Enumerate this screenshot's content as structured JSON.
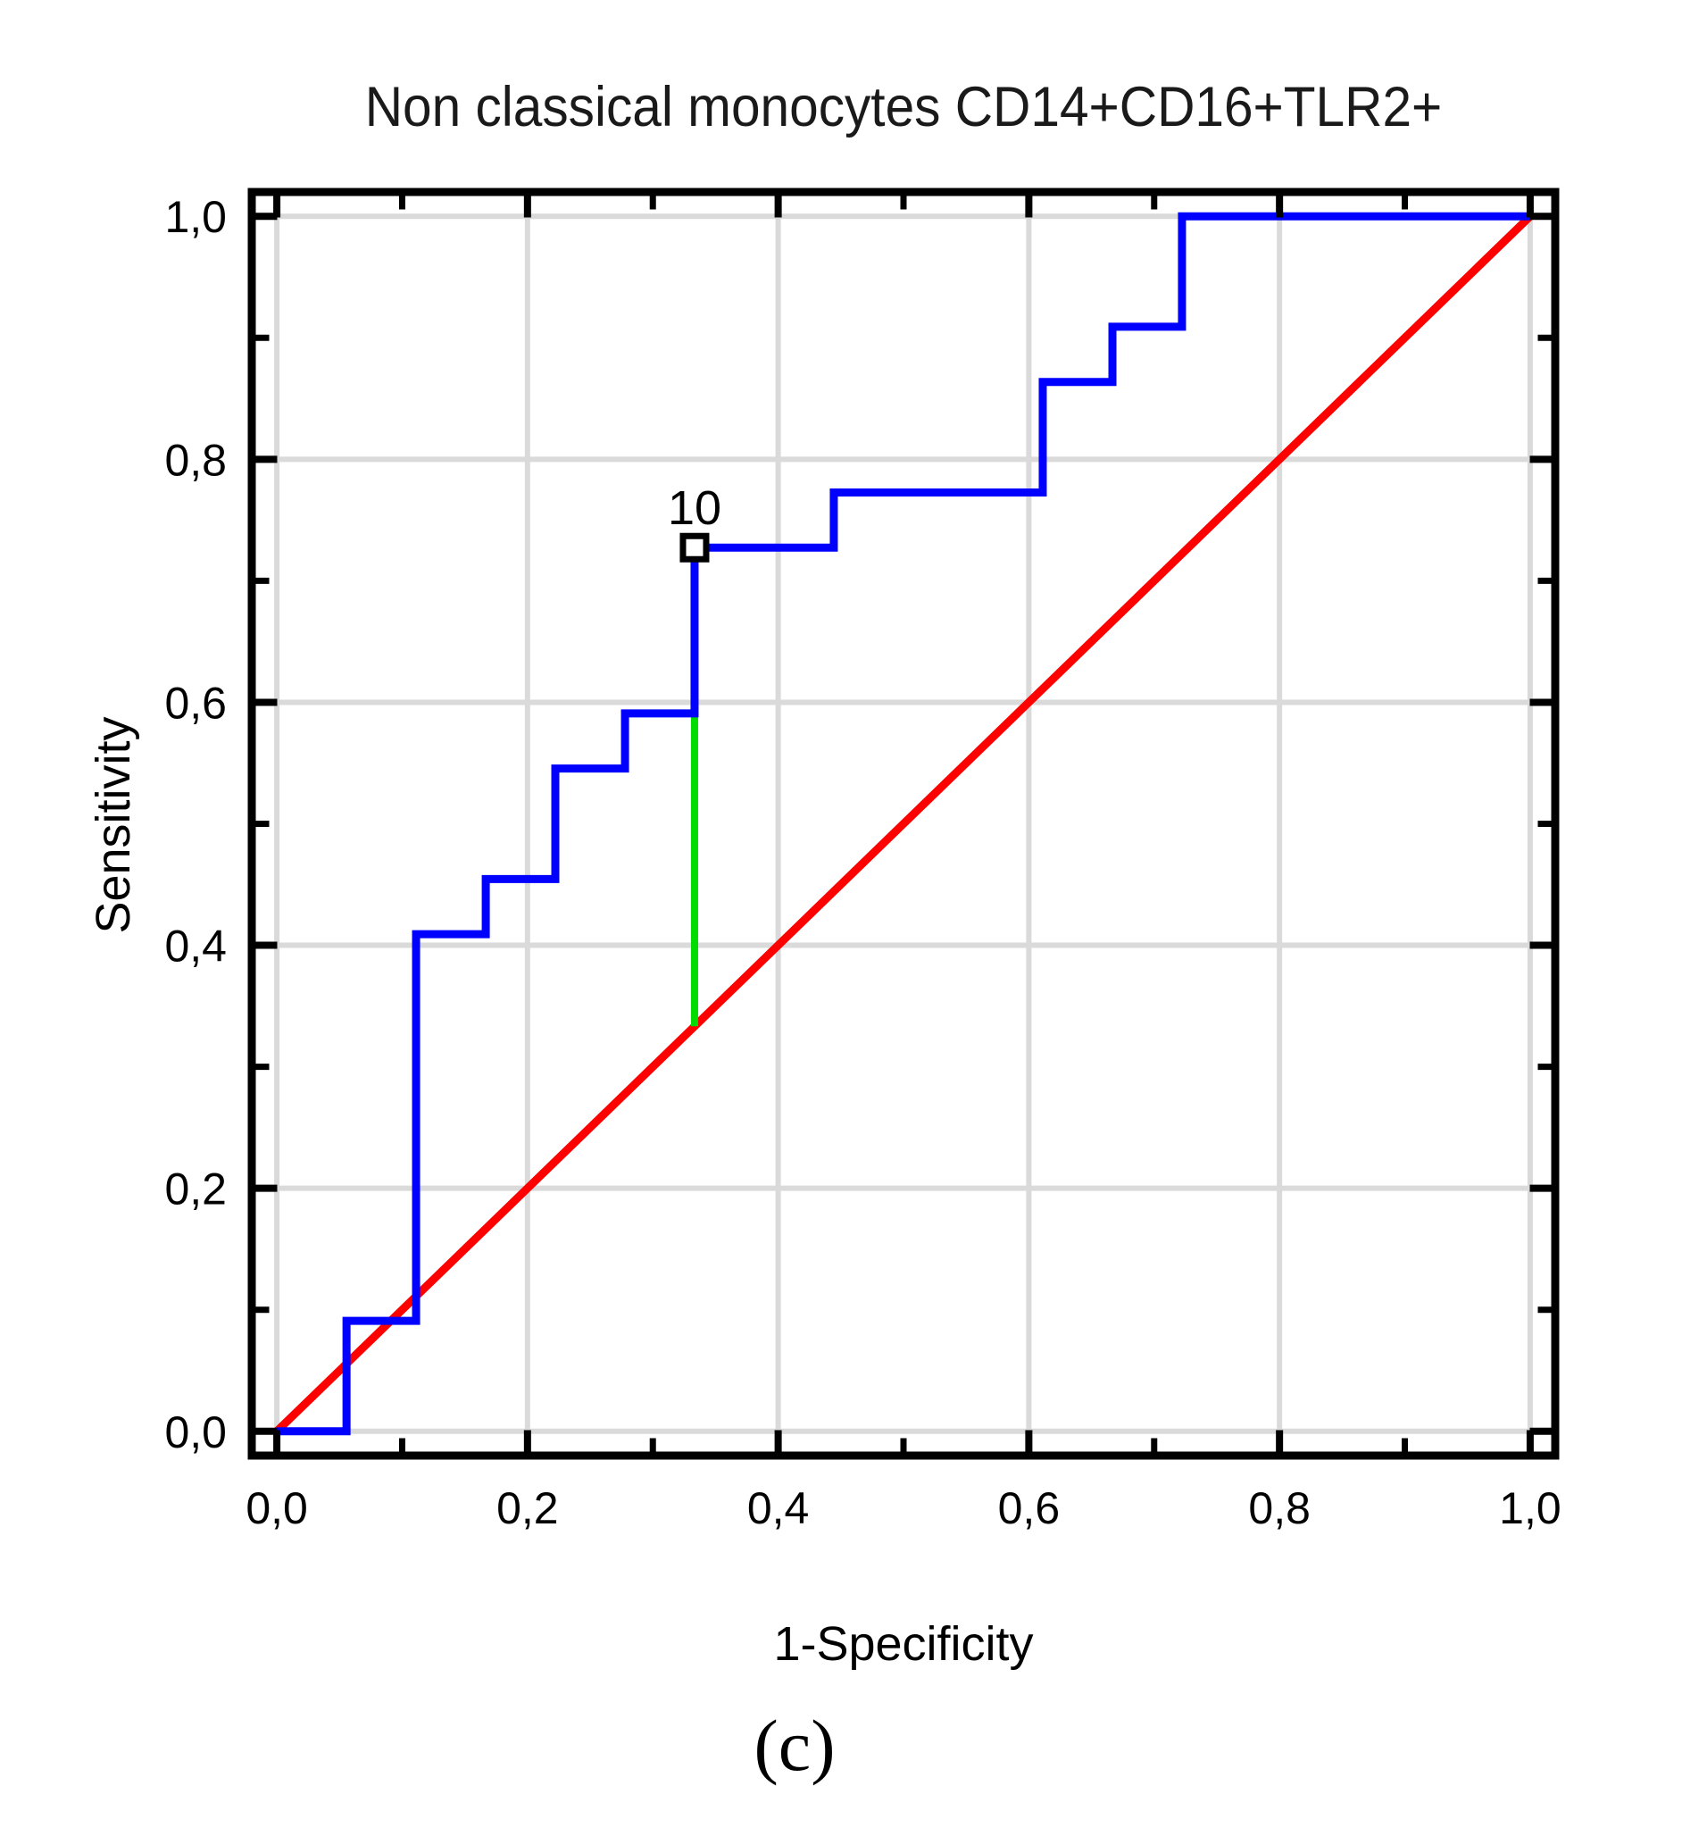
{
  "title": "Non classical monocytes CD14+CD16+TLR2+",
  "caption": "(c)",
  "chart_data": {
    "type": "line",
    "subtype": "roc-step-curve",
    "title": "Non classical monocytes CD14+CD16+TLR2+",
    "xlabel": "1-Specificity",
    "ylabel": "Sensitivity",
    "xlim": [
      -0.02,
      1.02
    ],
    "ylim": [
      -0.02,
      1.02
    ],
    "grid": true,
    "legend": "none",
    "major_tick_values": [
      0.0,
      0.2,
      0.4,
      0.6,
      0.8,
      1.0
    ],
    "minor_tick_values": [
      0.1,
      0.3,
      0.5,
      0.7,
      0.9
    ],
    "x_tick_labels": [
      "0,0",
      "0,2",
      "0,4",
      "0,6",
      "0,8",
      "1,0"
    ],
    "y_tick_labels": [
      "0,0",
      "0,2",
      "0,4",
      "0,6",
      "0,8",
      "1,0"
    ],
    "series": [
      {
        "name": "roc-curve",
        "color": "#0000FF",
        "width": 9,
        "points": [
          [
            0.0,
            0.0
          ],
          [
            0.0556,
            0.0
          ],
          [
            0.0556,
            0.0909
          ],
          [
            0.1111,
            0.0909
          ],
          [
            0.1111,
            0.4091
          ],
          [
            0.1667,
            0.4091
          ],
          [
            0.1667,
            0.4545
          ],
          [
            0.2222,
            0.4545
          ],
          [
            0.2222,
            0.5455
          ],
          [
            0.2778,
            0.5455
          ],
          [
            0.2778,
            0.5909
          ],
          [
            0.3333,
            0.5909
          ],
          [
            0.3333,
            0.7273
          ],
          [
            0.4444,
            0.7273
          ],
          [
            0.4444,
            0.7727
          ],
          [
            0.6111,
            0.7727
          ],
          [
            0.6111,
            0.8636
          ],
          [
            0.6667,
            0.8636
          ],
          [
            0.6667,
            0.9091
          ],
          [
            0.7222,
            0.9091
          ],
          [
            0.7222,
            1.0
          ],
          [
            1.0,
            1.0
          ]
        ]
      },
      {
        "name": "chance-diagonal",
        "color": "#FF0000",
        "width": 9,
        "points": [
          [
            0.0,
            0.0
          ],
          [
            1.0,
            1.0
          ]
        ]
      },
      {
        "name": "cutoff-line",
        "color": "#00DC00",
        "width": 8,
        "points": [
          [
            0.3333,
            0.3333
          ],
          [
            0.3333,
            0.7273
          ]
        ]
      }
    ],
    "cutoff_marker": {
      "label": "10",
      "x": 0.3333,
      "y": 0.7273
    },
    "colors": {
      "grid": "#DADADA",
      "frame": "#000000",
      "marker_fill": "#FFFFFF",
      "text": "#000000"
    }
  }
}
